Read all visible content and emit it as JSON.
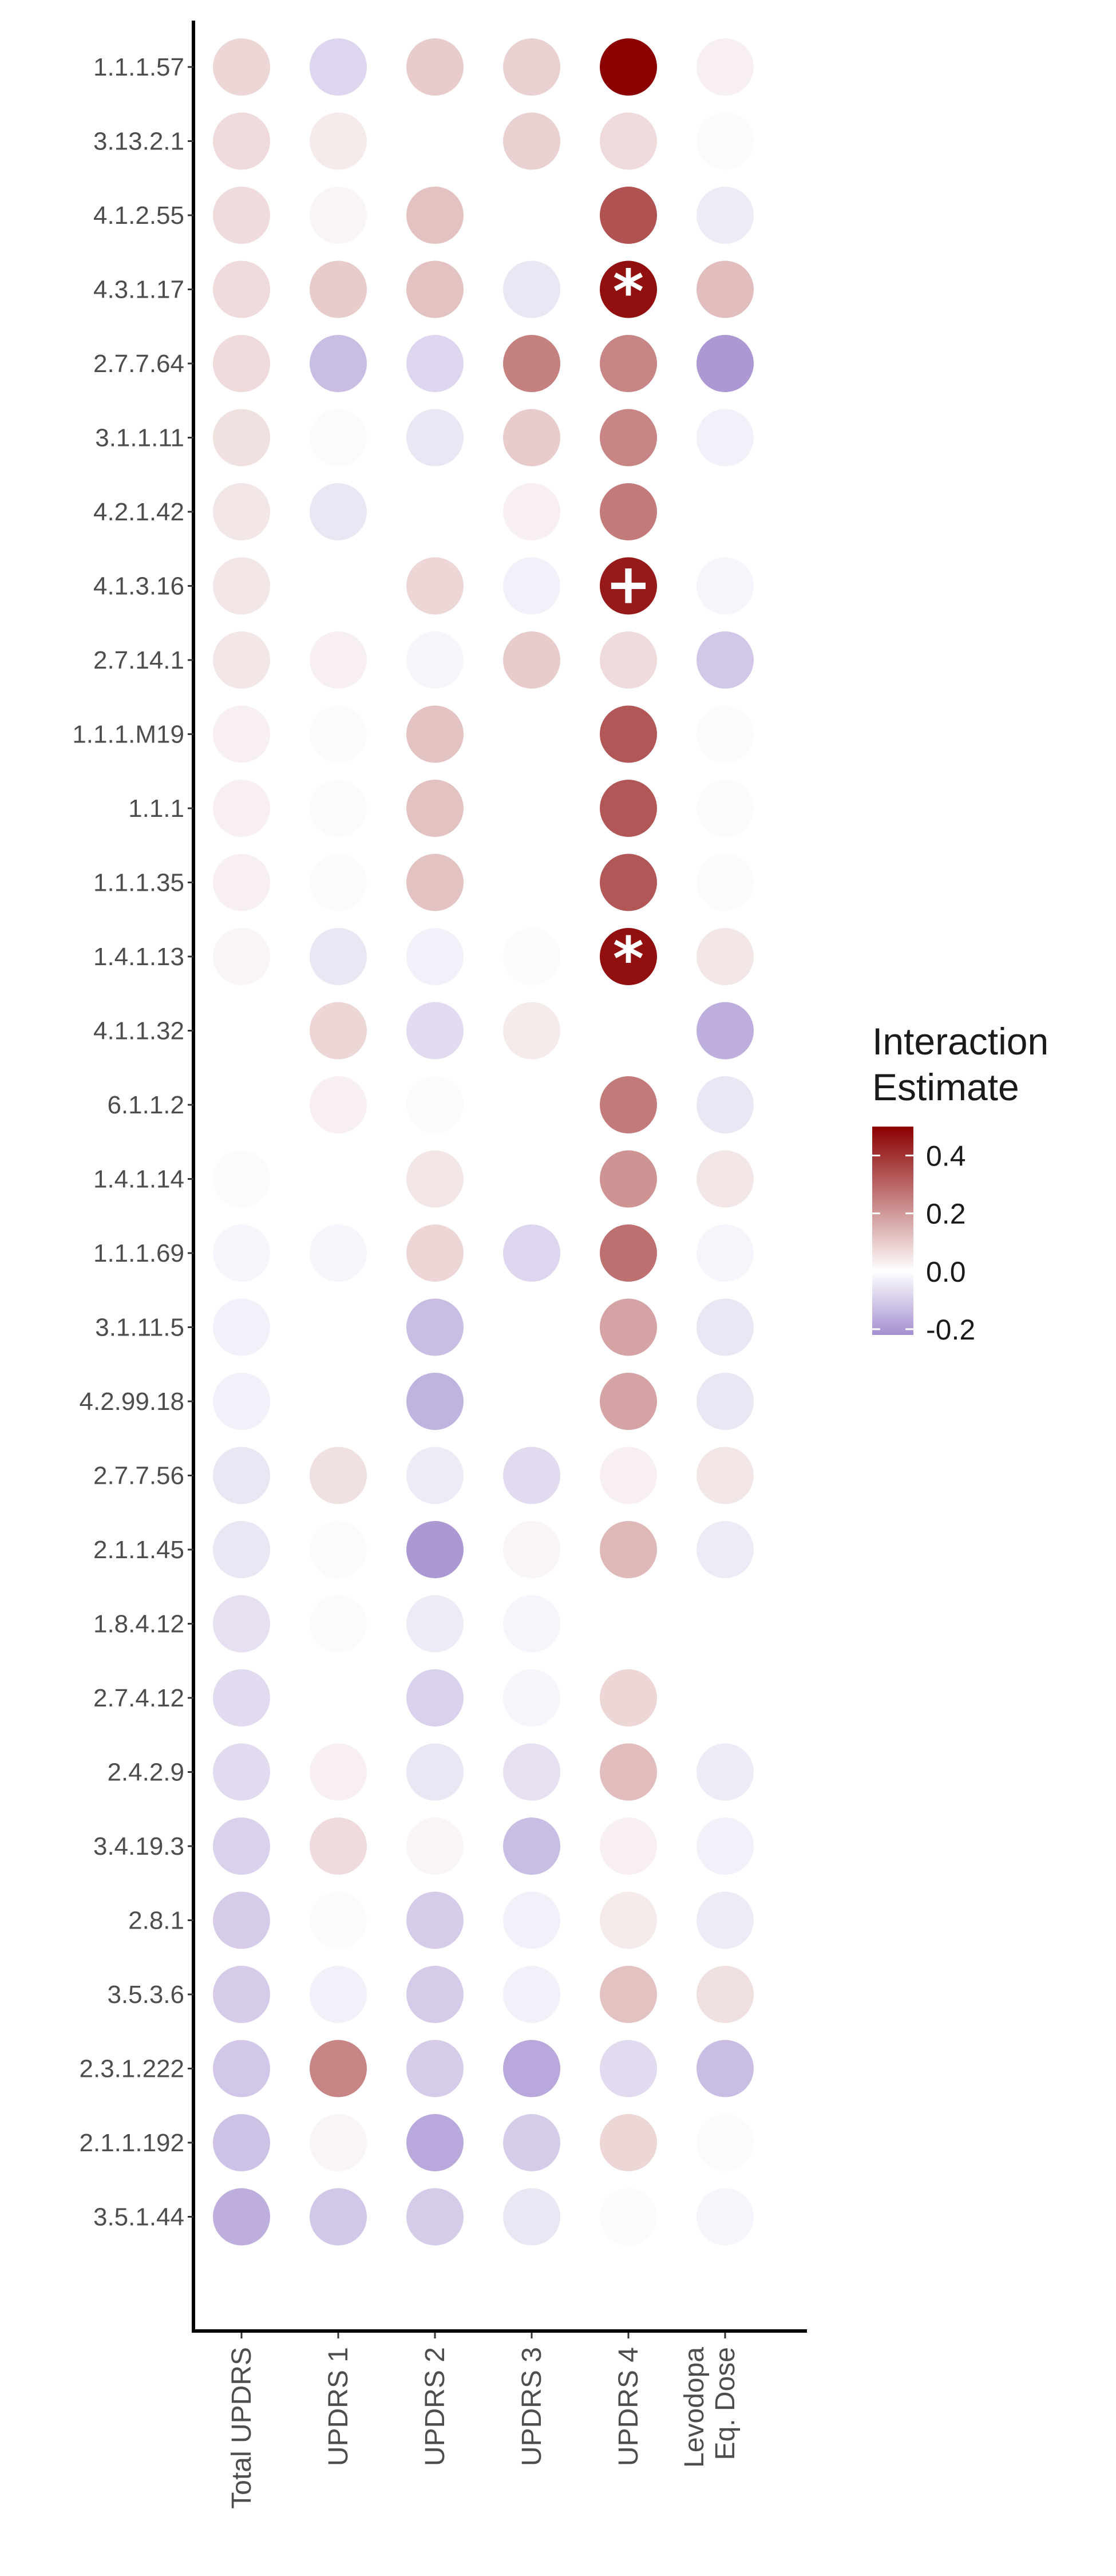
{
  "chart_data": {
    "type": "heatmap",
    "rows": [
      "1.1.1.57",
      "3.13.2.1",
      "4.1.2.55",
      "4.3.1.17",
      "2.7.7.64",
      "3.1.1.11",
      "4.2.1.42",
      "4.1.3.16",
      "2.7.14.1",
      "1.1.1.M19",
      "1.1.1",
      "1.1.1.35",
      "1.4.1.13",
      "4.1.1.32",
      "6.1.1.2",
      "1.4.1.14",
      "1.1.1.69",
      "3.1.11.5",
      "4.2.99.18",
      "2.7.7.56",
      "2.1.1.45",
      "1.8.4.12",
      "2.7.4.12",
      "2.4.2.9",
      "3.4.19.3",
      "2.8.1",
      "3.5.3.6",
      "2.3.1.222",
      "2.1.1.192",
      "3.5.1.44"
    ],
    "columns": [
      {
        "lines": [
          "Total UPDRS"
        ]
      },
      {
        "lines": [
          "UPDRS 1"
        ]
      },
      {
        "lines": [
          "UPDRS 2"
        ]
      },
      {
        "lines": [
          "UPDRS 3"
        ]
      },
      {
        "lines": [
          "UPDRS 4"
        ]
      },
      {
        "lines": [
          "Levodopa",
          "Eq. Dose"
        ]
      }
    ],
    "values": [
      [
        0.08,
        -0.08,
        0.1,
        0.09,
        0.5,
        0.03
      ],
      [
        0.07,
        0.04,
        null,
        0.09,
        0.07,
        -0.01
      ],
      [
        0.07,
        0.02,
        0.12,
        0.0,
        0.34,
        -0.04
      ],
      [
        0.07,
        0.1,
        0.12,
        -0.05,
        0.47,
        0.13
      ],
      [
        0.07,
        -0.13,
        -0.08,
        0.25,
        0.24,
        -0.2
      ],
      [
        0.06,
        -0.01,
        -0.05,
        0.1,
        0.24,
        -0.03
      ],
      [
        0.05,
        -0.05,
        0.0,
        0.03,
        0.26,
        0.0
      ],
      [
        0.05,
        0.0,
        0.08,
        -0.03,
        0.45,
        -0.02
      ],
      [
        0.05,
        0.03,
        -0.02,
        0.1,
        0.07,
        -0.11
      ],
      [
        0.03,
        -0.01,
        0.12,
        null,
        0.33,
        -0.01
      ],
      [
        0.03,
        -0.01,
        0.12,
        null,
        0.33,
        -0.01
      ],
      [
        0.03,
        -0.01,
        0.12,
        null,
        0.33,
        -0.01
      ],
      [
        0.02,
        -0.05,
        -0.03,
        -0.01,
        0.47,
        0.05
      ],
      [
        0.0,
        0.08,
        -0.07,
        0.04,
        0.0,
        -0.16
      ],
      [
        0.0,
        0.03,
        -0.01,
        null,
        0.26,
        -0.05
      ],
      [
        -0.01,
        null,
        0.05,
        0.0,
        0.21,
        0.05
      ],
      [
        -0.02,
        -0.02,
        0.08,
        -0.08,
        0.28,
        -0.02
      ],
      [
        -0.03,
        null,
        -0.13,
        0.0,
        0.18,
        -0.05
      ],
      [
        -0.03,
        0.0,
        -0.15,
        0.0,
        0.18,
        -0.05
      ],
      [
        -0.05,
        0.06,
        -0.04,
        -0.07,
        0.03,
        0.05
      ],
      [
        -0.05,
        -0.01,
        -0.2,
        0.02,
        0.14,
        -0.04
      ],
      [
        -0.06,
        0.01,
        -0.04,
        -0.02,
        0.0,
        null
      ],
      [
        -0.07,
        0.0,
        -0.09,
        -0.02,
        0.08,
        null
      ],
      [
        -0.07,
        0.03,
        -0.05,
        -0.06,
        0.13,
        -0.04
      ],
      [
        -0.09,
        0.07,
        0.02,
        -0.13,
        0.03,
        -0.03
      ],
      [
        -0.1,
        0.01,
        -0.1,
        -0.03,
        0.04,
        -0.04
      ],
      [
        -0.1,
        -0.03,
        -0.1,
        -0.03,
        0.12,
        0.06
      ],
      [
        -0.11,
        0.24,
        -0.1,
        -0.17,
        -0.07,
        -0.13
      ],
      [
        -0.12,
        0.02,
        -0.17,
        -0.1,
        0.08,
        0.01
      ],
      [
        -0.16,
        -0.11,
        -0.1,
        -0.05,
        -0.01,
        -0.02
      ]
    ],
    "annotations": [
      {
        "row": "4.3.1.17",
        "column": "UPDRS 4",
        "symbol": "*"
      },
      {
        "row": "4.1.3.16",
        "column": "UPDRS 4",
        "symbol": "+"
      },
      {
        "row": "1.4.1.13",
        "column": "UPDRS 4",
        "symbol": "*"
      }
    ],
    "legend": {
      "title_lines": [
        "Interaction",
        "Estimate"
      ],
      "ticks": [
        0.4,
        0.2,
        0.0,
        -0.2
      ],
      "tick_labels": [
        "0.4",
        "0.2",
        "0.0",
        "-0.2"
      ],
      "range": [
        -0.22,
        0.5
      ],
      "placement": "right"
    },
    "colors": {
      "high": "#8b0000",
      "mid": "#ffffff",
      "low": "#a48fd0",
      "axis": "#000000",
      "label": "#4d4d4d"
    }
  }
}
